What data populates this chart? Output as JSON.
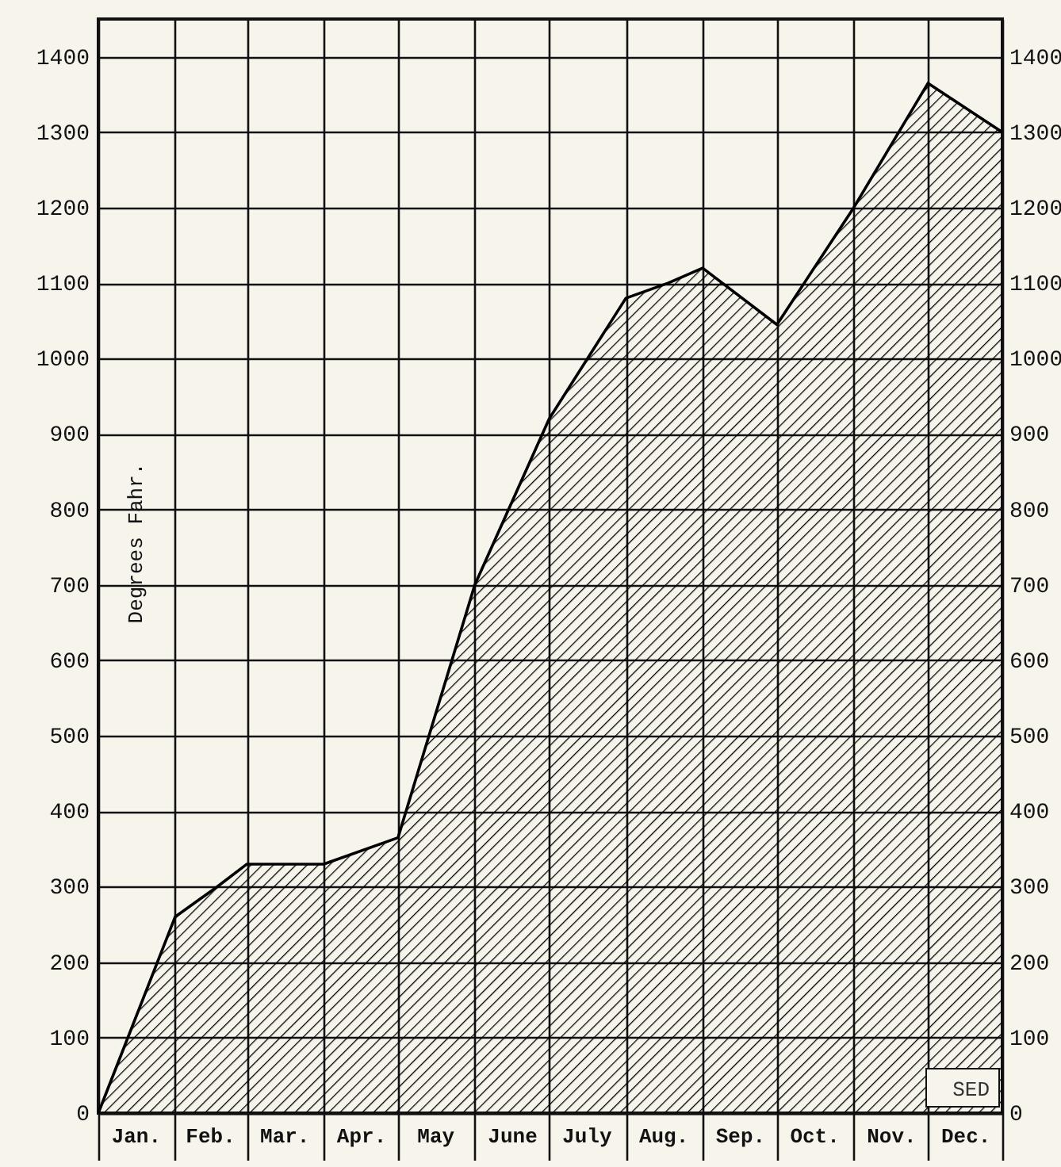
{
  "chart_data": {
    "type": "area",
    "ylabel": "Degrees Fahr.",
    "x": [
      "--01-01",
      "--02-01",
      "--02-18",
      "--03-01",
      "--04-01",
      "--05-01",
      "--06-01",
      "--07-01",
      "--08-01",
      "--08-18",
      "--09-01",
      "--10-01",
      "--11-01",
      "--12-01",
      "--12-31"
    ],
    "series": [
      {
        "color": "#000000",
        "values": [
          0,
          260,
          300,
          330,
          330,
          365,
          700,
          920,
          1080,
          1100,
          1120,
          1045,
          1200,
          1365,
          1300
        ]
      }
    ],
    "xlim": [
      "--01-01",
      "--12-31"
    ],
    "xticks": [
      {
        "value": "--01-01",
        "label": null
      },
      {
        "value": "--01-16",
        "label": "Jan."
      },
      {
        "value": "--02-01",
        "label": null
      },
      {
        "value": "--02-15",
        "label": "Feb."
      },
      {
        "value": "--03-01",
        "label": null
      },
      {
        "value": "--03-16",
        "label": "Mar."
      },
      {
        "value": "--04-01",
        "label": null
      },
      {
        "value": "--04-16",
        "label": "Apr."
      },
      {
        "value": "--05-01",
        "label": null
      },
      {
        "value": "--05-16",
        "label": "May"
      },
      {
        "value": "--06-01",
        "label": null
      },
      {
        "value": "--06-16",
        "label": "June"
      },
      {
        "value": "--07-01",
        "label": null
      },
      {
        "value": "--07-16",
        "label": "July"
      },
      {
        "value": "--08-01",
        "label": null
      },
      {
        "value": "--08-16",
        "label": "Aug."
      },
      {
        "value": "--09-01",
        "label": null
      },
      {
        "value": "--09-16",
        "label": "Sep."
      },
      {
        "value": "--10-01",
        "label": null
      },
      {
        "value": "--10-16",
        "label": "Oct."
      },
      {
        "value": "--11-01",
        "label": null
      },
      {
        "value": "--11-16",
        "label": "Nov."
      },
      {
        "value": "--12-01",
        "label": null
      },
      {
        "value": "--12-16",
        "label": "Dec."
      },
      {
        "value": "--12-31",
        "label": null
      }
    ],
    "ylim": [
      0,
      1450
    ],
    "yticks": [
      0,
      100,
      200,
      300,
      400,
      500,
      600,
      700,
      800,
      900,
      1000,
      1100,
      1200,
      1300,
      1400
    ],
    "y2lim": [
      0,
      1450
    ],
    "y2ticks": [
      0,
      100,
      200,
      300,
      400,
      500,
      600,
      700,
      800,
      900,
      1000,
      1100,
      1200,
      1300,
      1400
    ],
    "grid": true,
    "annotations": [
      "SED"
    ]
  }
}
